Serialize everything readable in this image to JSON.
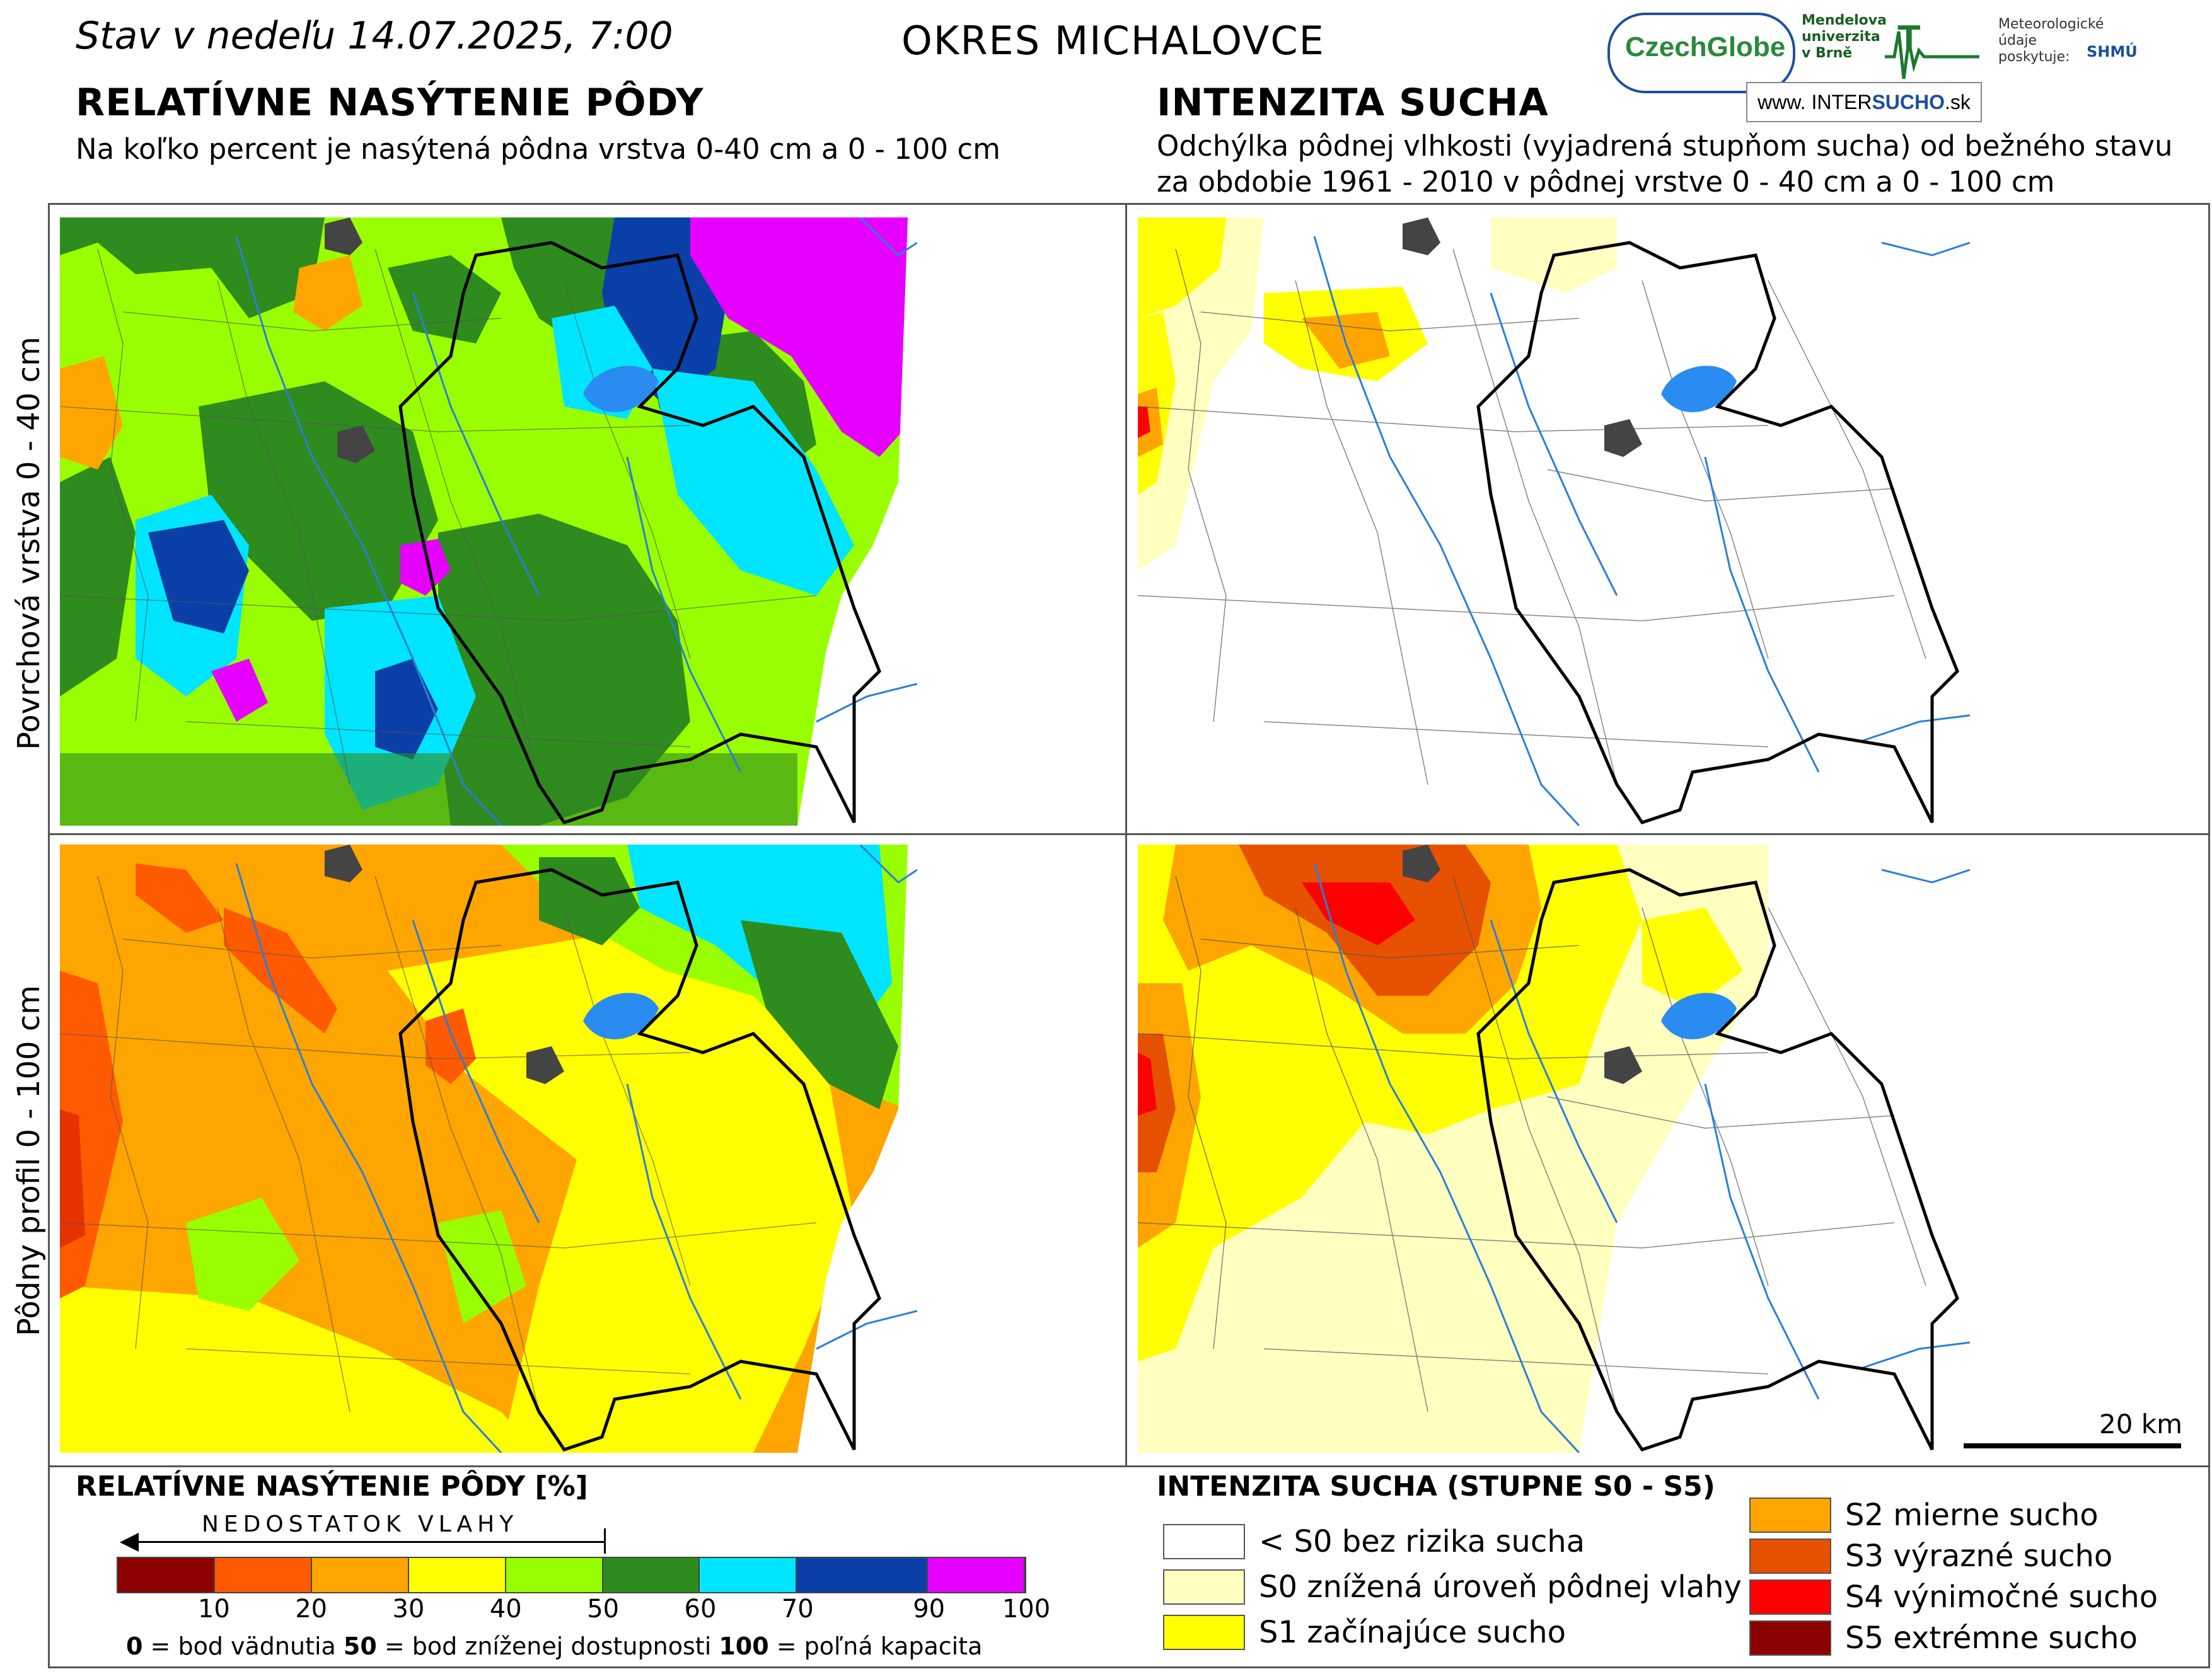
{
  "header": {
    "date_prefix": "Stav v nedeľu",
    "date_value": "14.07.2025, 7:00",
    "district": "OKRES  MICHALOVCE"
  },
  "left_section": {
    "title": "RELATÍVNE NASÝTENIE PÔDY",
    "subtitle": "Na koľko percent je nasýtená pôdna vrstva 0-40 cm a 0 - 100 cm"
  },
  "right_section": {
    "title": "INTENZITA SUCHA",
    "subtitle_line1": "Odchýlka pôdnej vlhkosti (vyjadrená stupňom sucha) od bežného stavu",
    "subtitle_line2": "za obdobie 1961 - 2010 v pôdnej vrstve 0 - 40 cm a 0 - 100 cm"
  },
  "logos": {
    "czechglobe": "CzechGlobe",
    "mendel": [
      "Mendelova",
      "univerzita",
      "v Brně"
    ],
    "meteo": [
      "Meteorologické",
      "údaje",
      "poskytuje:"
    ],
    "shmu": "SHMÚ",
    "inter_prefix": "www. INTER",
    "inter_bold": "SUCHO",
    "inter_suffix": ".sk"
  },
  "row_labels": {
    "top": "Povrchová vrstva 0 - 40 cm",
    "bottom": "Pôdny profil 0 - 100 cm"
  },
  "scale": {
    "label": "20 km"
  },
  "legend_saturation": {
    "title": "RELATÍVNE NASÝTENIE PÔDY [%]",
    "arrow_label": "NEDOSTATOK VLAHY",
    "classes": [
      {
        "from": 0,
        "to": 10,
        "color": "#8b0000"
      },
      {
        "from": 10,
        "to": 20,
        "color": "#ff5a00"
      },
      {
        "from": 20,
        "to": 30,
        "color": "#ffa500"
      },
      {
        "from": 30,
        "to": 40,
        "color": "#ffff00"
      },
      {
        "from": 40,
        "to": 50,
        "color": "#99ff00"
      },
      {
        "from": 50,
        "to": 60,
        "color": "#2e8b1e"
      },
      {
        "from": 60,
        "to": 70,
        "color": "#00e5ff"
      },
      {
        "from": 70,
        "to": 90,
        "color": "#0a3fa8"
      },
      {
        "from": 90,
        "to": 100,
        "color": "#e500ff"
      }
    ],
    "ticks": [
      "10",
      "20",
      "30",
      "40",
      "50",
      "60",
      "70",
      "90",
      "100"
    ],
    "note_0": "0",
    "note_0_text": " = bod vädnutia   ",
    "note_50": "50",
    "note_50_text": " = bod zníženej dostupnosti   ",
    "note_100": "100",
    "note_100_text": " = poľná kapacita"
  },
  "legend_drought": {
    "title": "INTENZITA SUCHA (STUPNE S0 - S5)",
    "items": [
      {
        "label": "< S0 bez rizika sucha",
        "color": "#ffffff"
      },
      {
        "label": "S0 znížená úroveň pôdnej vlahy",
        "color": "#ffffc0"
      },
      {
        "label": "S1 začínajúce sucho",
        "color": "#ffff00"
      },
      {
        "label": "S2 mierne sucho",
        "color": "#ffa500"
      },
      {
        "label": "S3 výrazné sucho",
        "color": "#e65100"
      },
      {
        "label": "S4 výnimočné sucho",
        "color": "#ff0000"
      },
      {
        "label": "S5 extrémne sucho",
        "color": "#8b0000"
      }
    ]
  }
}
